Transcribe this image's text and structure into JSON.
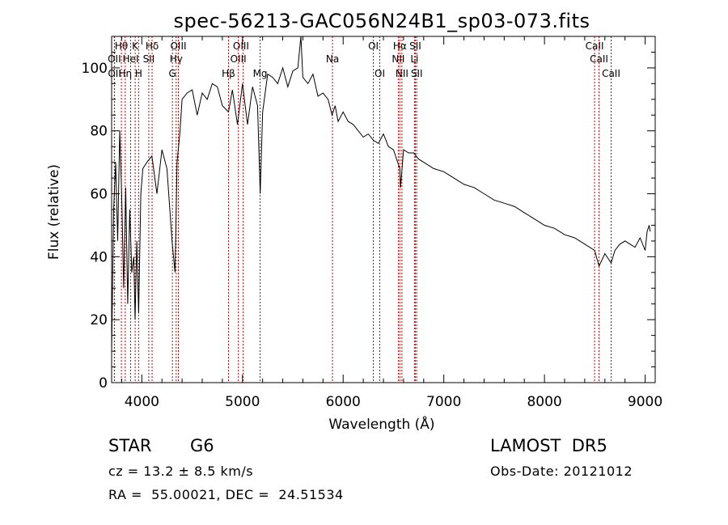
{
  "chart_data": {
    "type": "line",
    "title": "spec-56213-GAC056N24B1_sp03-073.fits",
    "xlabel": "Wavelength (Å)",
    "ylabel": "Flux (relative)",
    "xlim": [
      3700,
      9100
    ],
    "ylim": [
      0,
      110
    ],
    "xticks": [
      4000,
      5000,
      6000,
      7000,
      8000,
      9000
    ],
    "yticks": [
      0,
      20,
      40,
      60,
      80,
      100
    ],
    "grid": false,
    "line_color": "#000000",
    "marker_color": "#cc0000",
    "series": [
      {
        "x": [
          3700,
          3720,
          3740,
          3760,
          3780,
          3800,
          3820,
          3840,
          3860,
          3880,
          3900,
          3920,
          3933,
          3950,
          3968,
          3990,
          4010,
          4050,
          4100,
          4150,
          4200,
          4250,
          4300,
          4330,
          4350,
          4380,
          4400,
          4450,
          4500,
          4550,
          4600,
          4650,
          4700,
          4750,
          4800,
          4861,
          4900,
          4950,
          5000,
          5050,
          5100,
          5150,
          5176,
          5200,
          5250,
          5300,
          5350,
          5400,
          5450,
          5500,
          5550,
          5580,
          5600,
          5650,
          5700,
          5750,
          5800,
          5850,
          5890,
          5920,
          5950,
          6000,
          6050,
          6100,
          6150,
          6200,
          6250,
          6300,
          6350,
          6400,
          6450,
          6500,
          6563,
          6570,
          6600,
          6650,
          6700,
          6750,
          6800,
          6900,
          7000,
          7100,
          7200,
          7300,
          7400,
          7500,
          7600,
          7700,
          7800,
          7900,
          8000,
          8100,
          8200,
          8300,
          8400,
          8498,
          8542,
          8600,
          8662,
          8700,
          8750,
          8800,
          8850,
          8900,
          8950,
          9000,
          9020,
          9040,
          9050
        ],
        "y": [
          10,
          55,
          70,
          45,
          80,
          60,
          30,
          62,
          25,
          55,
          35,
          40,
          20,
          45,
          22,
          60,
          68,
          70,
          72,
          60,
          74,
          68,
          45,
          35,
          70,
          80,
          90,
          92,
          93,
          85,
          92,
          90,
          95,
          94,
          88,
          86,
          93,
          82,
          95,
          82,
          94,
          88,
          60,
          86,
          98,
          97,
          95,
          100,
          94,
          99,
          100,
          110,
          97,
          95,
          98,
          91,
          92,
          90,
          85,
          88,
          83,
          86,
          83,
          82,
          80,
          78,
          79,
          77,
          76,
          79,
          75,
          74,
          68,
          62,
          74,
          73,
          73,
          71,
          70,
          68,
          67,
          65,
          63,
          62,
          60,
          58,
          57,
          56,
          54,
          52,
          50,
          49,
          47,
          46,
          44,
          42,
          37,
          41,
          38,
          42,
          44,
          45,
          44,
          43,
          46,
          42,
          48,
          50,
          48
        ]
      }
    ],
    "lines": [
      {
        "name": "Hθ",
        "x": 3797
      },
      {
        "name": "OII",
        "x": 3727
      },
      {
        "name": "OII",
        "x": 3729
      },
      {
        "name": "K",
        "x": 3934
      },
      {
        "name": "H",
        "x": 3968
      },
      {
        "name": "HeI",
        "x": 3889
      },
      {
        "name": "Hη",
        "x": 3835
      },
      {
        "name": "SII",
        "x": 4069
      },
      {
        "name": "Hδ",
        "x": 4102
      },
      {
        "name": "OIII",
        "x": 4363
      },
      {
        "name": "Hγ",
        "x": 4341
      },
      {
        "name": "G",
        "x": 4304
      },
      {
        "name": "OIII",
        "x": 4959
      },
      {
        "name": "OIII",
        "x": 5007
      },
      {
        "name": "Hβ",
        "x": 4861
      },
      {
        "name": "Mg",
        "x": 5175
      },
      {
        "name": "Na",
        "x": 5894
      },
      {
        "name": "OI",
        "x": 6300
      },
      {
        "name": "OI",
        "x": 6364
      },
      {
        "name": "Hα",
        "x": 6563
      },
      {
        "name": "NII",
        "x": 6548
      },
      {
        "name": "NII",
        "x": 6584
      },
      {
        "name": "SII",
        "x": 6717
      },
      {
        "name": "SII",
        "x": 6731
      },
      {
        "name": "Li",
        "x": 6708
      },
      {
        "name": "CaII",
        "x": 8498
      },
      {
        "name": "CaII",
        "x": 8542
      },
      {
        "name": "CaII",
        "x": 8662
      }
    ],
    "line_labels": [
      {
        "text": "Hθ",
        "x": 3797,
        "row": 0
      },
      {
        "text": "K",
        "x": 3934,
        "row": 0
      },
      {
        "text": "Hδ",
        "x": 4102,
        "row": 0
      },
      {
        "text": "OIII",
        "x": 4363,
        "row": 0
      },
      {
        "text": "OIII",
        "x": 4985,
        "row": 0
      },
      {
        "text": "OI",
        "x": 6300,
        "row": 0
      },
      {
        "text": "Hα",
        "x": 6563,
        "row": 0
      },
      {
        "text": "SII",
        "x": 6717,
        "row": 0
      },
      {
        "text": "CaII",
        "x": 8498,
        "row": 0
      },
      {
        "text": "OII",
        "x": 3727,
        "row": 1
      },
      {
        "text": "HeI",
        "x": 3889,
        "row": 1
      },
      {
        "text": "SII",
        "x": 4069,
        "row": 1
      },
      {
        "text": "Hγ",
        "x": 4341,
        "row": 1
      },
      {
        "text": "OIII",
        "x": 4959,
        "row": 1
      },
      {
        "text": "Na",
        "x": 5894,
        "row": 1
      },
      {
        "text": "NII",
        "x": 6548,
        "row": 1
      },
      {
        "text": "Li",
        "x": 6708,
        "row": 1
      },
      {
        "text": "CaII",
        "x": 8542,
        "row": 1
      },
      {
        "text": "OII",
        "x": 3729,
        "row": 2
      },
      {
        "text": "Hη",
        "x": 3835,
        "row": 2
      },
      {
        "text": "H",
        "x": 3968,
        "row": 2
      },
      {
        "text": "G",
        "x": 4304,
        "row": 2
      },
      {
        "text": "Hβ",
        "x": 4861,
        "row": 2
      },
      {
        "text": "Mg",
        "x": 5175,
        "row": 2
      },
      {
        "text": "OI",
        "x": 6364,
        "row": 2
      },
      {
        "text": "NII",
        "x": 6584,
        "row": 2
      },
      {
        "text": "SII",
        "x": 6731,
        "row": 2
      },
      {
        "text": "CaII",
        "x": 8662,
        "row": 2
      }
    ]
  },
  "footer": {
    "object_class": "STAR",
    "subclass": "G6",
    "survey": "LAMOST  DR5",
    "redshift": "cz = 13.2 ± 8.5 km/s",
    "obs_date": "Obs-Date: 20121012",
    "coords": "RA =  55.00021, DEC =  24.51534"
  }
}
